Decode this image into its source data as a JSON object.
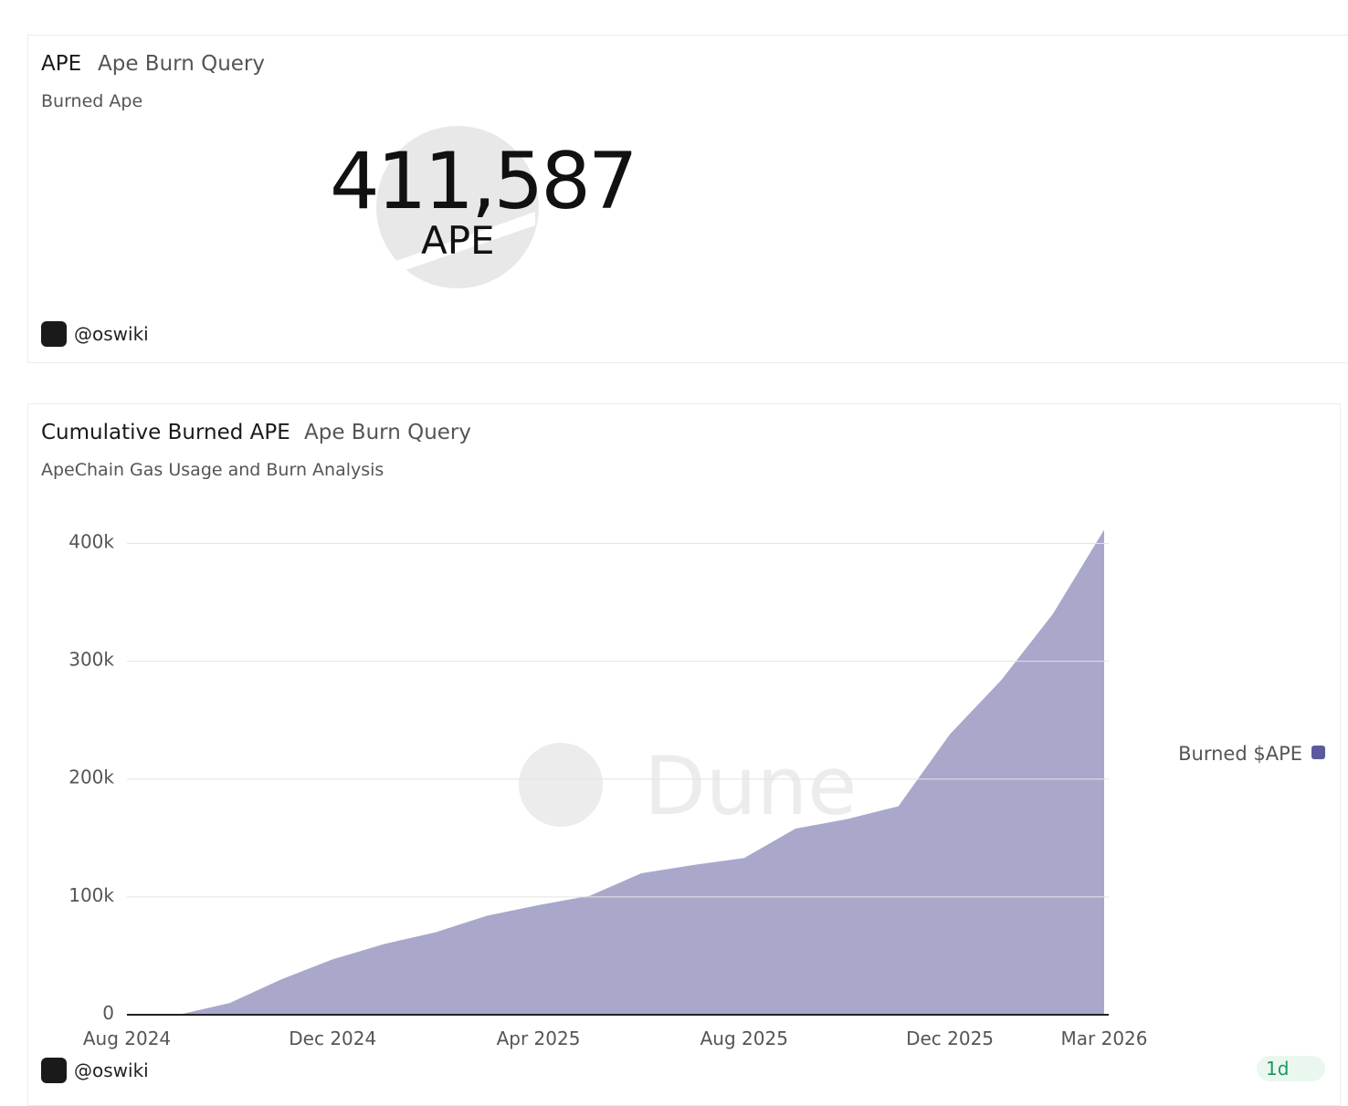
{
  "counter_panel": {
    "title": "APE",
    "query": "Ape Burn Query",
    "subtitle": "Burned Ape",
    "value": "411,587",
    "unit": "APE",
    "author": "@oswiki"
  },
  "chart_panel": {
    "query": "Ape Burn Query",
    "subtitle": "ApeChain Gas Usage and Burn Analysis",
    "author": "@oswiki",
    "badge": "1d",
    "watermark": "Dune"
  },
  "chart_data": {
    "type": "area",
    "title": "Cumulative Burned APE",
    "x": [
      "Aug 2024",
      "Sep 2024",
      "Oct 2024",
      "Nov 2024",
      "Dec 2024",
      "Jan 2025",
      "Feb 2025",
      "Mar 2025",
      "Apr 2025",
      "May 2025",
      "Jun 2025",
      "Jul 2025",
      "Aug 2025",
      "Sep 2025",
      "Oct 2025",
      "Nov 2025",
      "Dec 2025",
      "Jan 2026",
      "Feb 2026",
      "Mar 2026"
    ],
    "series": [
      {
        "name": "Burned $APE",
        "color": "#a9a8cb",
        "legend_color": "#5b5a9e",
        "values": [
          0,
          0,
          10000,
          30000,
          47000,
          60000,
          70000,
          84000,
          93000,
          101000,
          120000,
          127000,
          133000,
          158000,
          166000,
          177000,
          238000,
          284000,
          340000,
          411587
        ]
      }
    ],
    "ylim": [
      0,
      412000
    ],
    "yticks": [
      {
        "value": 0,
        "label": "0"
      },
      {
        "value": 100000,
        "label": "100k"
      },
      {
        "value": 200000,
        "label": "200k"
      },
      {
        "value": 300000,
        "label": "300k"
      },
      {
        "value": 400000,
        "label": "400k"
      }
    ],
    "xticks": [
      "Aug 2024",
      "Dec 2024",
      "Apr 2025",
      "Aug 2025",
      "Dec 2025",
      "Mar 2026"
    ],
    "grid": true,
    "legend": "right"
  }
}
